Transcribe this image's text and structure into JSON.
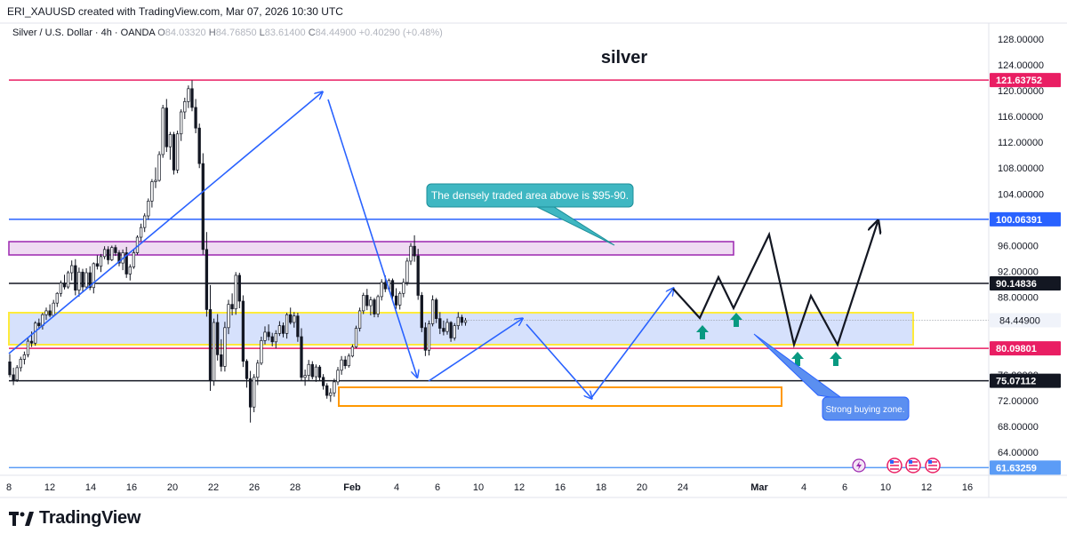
{
  "header": {
    "text": "ERI_XAUUSD created with TradingView.com, Mar 07, 2026 10:30 UTC"
  },
  "legend": {
    "symbol": "Silver / U.S. Dollar · 4h · OANDA",
    "o_label": "O",
    "o": "84.03320",
    "h_label": "H",
    "h": "84.76850",
    "l_label": "L",
    "l": "83.61400",
    "c_label": "C",
    "c": "84.44900",
    "change": "+0.40290 (+0.48%)"
  },
  "branding": {
    "name": "TradingView"
  },
  "colors": {
    "up": "#ffffff",
    "down": "#131722",
    "pink": "#e91e63",
    "blue": "#2962ff",
    "purple": "#9c27b0",
    "yellow": "#ffeb3b",
    "orange": "#ff9800",
    "green": "#089981",
    "teal": "#26a69a"
  },
  "chart_data": {
    "type": "candlestick",
    "title": "silver",
    "ylim": [
      60,
      132
    ],
    "y_ticks": [
      "128.00000",
      "124.00000",
      "120.00000",
      "116.00000",
      "112.00000",
      "108.00000",
      "104.00000",
      "96.00000",
      "92.00000",
      "88.00000",
      "76.00000",
      "72.00000",
      "68.00000",
      "64.00000"
    ],
    "x_ticks": [
      "8",
      "12",
      "14",
      "16",
      "20",
      "22",
      "26",
      "28",
      "Feb",
      "4",
      "6",
      "10",
      "12",
      "16",
      "18",
      "20",
      "24",
      "Mar",
      "4",
      "6",
      "10",
      "12",
      "16"
    ],
    "price_lines": [
      {
        "label": "121.63752",
        "value": 121.63752,
        "color": "#e91e63"
      },
      {
        "label": "100.06391",
        "value": 100.06391,
        "color": "#2962ff"
      },
      {
        "label": "90.14836",
        "value": 90.14836,
        "color": "#131722"
      },
      {
        "label": "80.09801",
        "value": 80.09801,
        "color": "#e91e63"
      },
      {
        "label": "75.07112",
        "value": 75.07112,
        "color": "#131722"
      },
      {
        "label": "61.63259",
        "value": 61.63259,
        "color": "#5b9cf6"
      }
    ],
    "last_price": "84.44900",
    "zones": [
      {
        "name": "purple-zone",
        "y_low": 94.5,
        "y_high": 96.5
      },
      {
        "name": "yellow-zone",
        "y_low": 81.0,
        "y_high": 85.8
      },
      {
        "name": "orange-zone",
        "y_low": 71.3,
        "y_high": 74.1
      }
    ],
    "annotations": [
      "The densely traded area above is $95-90.",
      "Strong buying zone."
    ],
    "ohlc": [
      [
        78.0,
        79.2,
        75.6,
        76.0
      ],
      [
        76.0,
        77.1,
        74.4,
        75.2
      ],
      [
        75.2,
        77.5,
        74.9,
        77.1
      ],
      [
        77.1,
        78.8,
        76.5,
        78.4
      ],
      [
        78.4,
        79.6,
        77.6,
        79.1
      ],
      [
        79.1,
        81.6,
        78.7,
        81.2
      ],
      [
        81.2,
        82.7,
        80.3,
        80.9
      ],
      [
        80.9,
        84.3,
        80.5,
        84.0
      ],
      [
        84.0,
        84.7,
        83.0,
        83.6
      ],
      [
        83.6,
        85.6,
        83.0,
        85.3
      ],
      [
        85.3,
        86.4,
        84.5,
        85.9
      ],
      [
        85.9,
        86.9,
        84.9,
        85.2
      ],
      [
        85.2,
        87.6,
        85.0,
        87.1
      ],
      [
        87.1,
        88.8,
        86.5,
        88.6
      ],
      [
        88.6,
        90.6,
        88.1,
        90.2
      ],
      [
        90.2,
        91.5,
        89.2,
        89.6
      ],
      [
        89.6,
        92.1,
        89.3,
        91.8
      ],
      [
        91.8,
        93.7,
        90.6,
        92.9
      ],
      [
        92.9,
        93.9,
        88.3,
        89.1
      ],
      [
        89.1,
        92.6,
        88.1,
        91.9
      ],
      [
        91.9,
        92.4,
        88.7,
        89.6
      ],
      [
        89.6,
        92.5,
        89.2,
        91.8
      ],
      [
        91.8,
        92.8,
        89.1,
        89.5
      ],
      [
        89.5,
        93.4,
        88.6,
        93.2
      ],
      [
        93.2,
        94.5,
        92.3,
        92.8
      ],
      [
        92.8,
        94.7,
        91.9,
        94.3
      ],
      [
        94.3,
        95.9,
        93.9,
        95.4
      ],
      [
        95.4,
        95.9,
        93.1,
        93.8
      ],
      [
        93.8,
        96.0,
        93.6,
        95.7
      ],
      [
        95.7,
        96.1,
        94.4,
        94.9
      ],
      [
        94.9,
        95.3,
        92.8,
        93.3
      ],
      [
        93.3,
        95.4,
        92.2,
        94.9
      ],
      [
        94.9,
        95.8,
        91.0,
        91.6
      ],
      [
        91.6,
        93.1,
        90.6,
        92.7
      ],
      [
        92.7,
        95.4,
        92.4,
        94.9
      ],
      [
        94.9,
        97.6,
        94.6,
        97.3
      ],
      [
        97.3,
        99.4,
        96.7,
        98.8
      ],
      [
        98.8,
        101.0,
        98.1,
        100.6
      ],
      [
        100.6,
        103.3,
        100.0,
        102.9
      ],
      [
        102.9,
        106.3,
        101.9,
        105.9
      ],
      [
        105.9,
        108.1,
        104.9,
        106.1
      ],
      [
        106.1,
        110.6,
        105.9,
        110.1
      ],
      [
        110.1,
        117.8,
        109.6,
        117.3
      ],
      [
        117.3,
        118.7,
        110.5,
        111.3
      ],
      [
        111.3,
        113.6,
        109.3,
        113.2
      ],
      [
        113.2,
        113.6,
        107.0,
        107.7
      ],
      [
        107.7,
        113.8,
        107.2,
        113.3
      ],
      [
        113.3,
        117.1,
        112.2,
        116.7
      ],
      [
        116.7,
        118.9,
        115.6,
        118.3
      ],
      [
        118.3,
        120.8,
        117.3,
        120.3
      ],
      [
        120.3,
        121.6,
        116.8,
        117.4
      ],
      [
        117.4,
        118.7,
        113.4,
        114.2
      ],
      [
        114.2,
        114.9,
        108.0,
        108.7
      ],
      [
        108.7,
        110.3,
        94.6,
        95.4
      ],
      [
        95.4,
        98.1,
        85.0,
        86.1
      ],
      [
        86.1,
        89.9,
        73.5,
        75.1
      ],
      [
        75.1,
        84.7,
        74.3,
        84.1
      ],
      [
        84.1,
        85.4,
        78.2,
        79.1
      ],
      [
        79.1,
        81.5,
        76.5,
        77.3
      ],
      [
        77.3,
        84.2,
        76.5,
        83.3
      ],
      [
        83.3,
        87.6,
        82.3,
        86.9
      ],
      [
        86.9,
        88.6,
        85.2,
        86.2
      ],
      [
        86.2,
        91.9,
        85.3,
        91.4
      ],
      [
        91.4,
        91.8,
        86.3,
        87.4
      ],
      [
        87.4,
        88.3,
        77.2,
        78.1
      ],
      [
        78.1,
        78.4,
        74.0,
        75.4
      ],
      [
        75.4,
        76.6,
        68.6,
        71.0
      ],
      [
        71.0,
        76.1,
        70.2,
        75.6
      ],
      [
        75.6,
        78.3,
        74.4,
        77.8
      ],
      [
        77.8,
        81.9,
        77.5,
        81.3
      ],
      [
        81.3,
        83.5,
        80.7,
        82.6
      ],
      [
        82.6,
        83.8,
        81.3,
        81.9
      ],
      [
        81.9,
        82.5,
        80.4,
        81.1
      ],
      [
        81.1,
        82.9,
        80.1,
        82.4
      ],
      [
        82.4,
        84.3,
        82.0,
        83.6
      ],
      [
        83.6,
        84.1,
        81.8,
        82.4
      ],
      [
        82.4,
        85.6,
        81.6,
        85.3
      ],
      [
        85.3,
        86.4,
        83.8,
        84.1
      ],
      [
        84.1,
        85.7,
        83.3,
        85.1
      ],
      [
        85.1,
        85.6,
        81.1,
        81.9
      ],
      [
        81.9,
        83.2,
        75.0,
        75.6
      ],
      [
        75.6,
        76.8,
        74.3,
        75.9
      ],
      [
        75.9,
        78.3,
        75.1,
        77.6
      ],
      [
        77.6,
        78.1,
        75.3,
        75.7
      ],
      [
        75.7,
        77.6,
        74.9,
        77.2
      ],
      [
        77.2,
        77.5,
        75.1,
        75.6
      ],
      [
        75.6,
        76.1,
        73.7,
        74.3
      ],
      [
        74.3,
        74.7,
        72.3,
        72.8
      ],
      [
        72.8,
        73.9,
        71.8,
        73.2
      ],
      [
        73.2,
        75.4,
        72.6,
        74.9
      ],
      [
        74.9,
        77.2,
        74.4,
        76.7
      ],
      [
        76.7,
        78.9,
        76.0,
        78.3
      ],
      [
        78.3,
        78.9,
        76.9,
        77.4
      ],
      [
        77.4,
        79.3,
        77.1,
        78.9
      ],
      [
        78.9,
        80.7,
        78.7,
        80.3
      ],
      [
        80.3,
        83.6,
        80.1,
        83.2
      ],
      [
        83.2,
        86.4,
        82.7,
        85.9
      ],
      [
        85.9,
        88.7,
        85.4,
        88.3
      ],
      [
        88.3,
        89.3,
        86.0,
        86.7
      ],
      [
        86.7,
        88.1,
        85.2,
        87.6
      ],
      [
        87.6,
        87.9,
        84.9,
        85.4
      ],
      [
        85.4,
        88.4,
        84.9,
        88.1
      ],
      [
        88.1,
        90.8,
        87.5,
        90.3
      ],
      [
        90.3,
        91.4,
        88.8,
        89.3
      ],
      [
        89.3,
        90.9,
        89.0,
        90.6
      ],
      [
        90.6,
        90.9,
        87.7,
        88.2
      ],
      [
        88.2,
        89.4,
        86.2,
        86.8
      ],
      [
        86.8,
        88.9,
        86.1,
        88.6
      ],
      [
        88.6,
        90.9,
        88.0,
        90.3
      ],
      [
        90.3,
        94.1,
        89.8,
        93.6
      ],
      [
        93.6,
        96.4,
        93.0,
        95.9
      ],
      [
        95.9,
        97.6,
        93.5,
        94.4
      ],
      [
        94.4,
        95.5,
        87.6,
        88.3
      ],
      [
        88.3,
        88.8,
        82.6,
        83.3
      ],
      [
        83.3,
        84.1,
        78.9,
        79.8
      ],
      [
        79.8,
        84.4,
        79.0,
        83.9
      ],
      [
        83.9,
        88.3,
        83.5,
        87.6
      ],
      [
        87.6,
        87.9,
        84.0,
        84.7
      ],
      [
        84.7,
        85.7,
        82.3,
        83.2
      ],
      [
        83.2,
        84.4,
        82.1,
        82.7
      ],
      [
        82.7,
        84.7,
        82.2,
        84.1
      ],
      [
        84.1,
        84.3,
        81.1,
        81.7
      ],
      [
        81.7,
        84.0,
        81.3,
        83.6
      ],
      [
        83.6,
        85.7,
        83.0,
        84.9
      ],
      [
        84.9,
        85.3,
        83.6,
        84.1
      ],
      [
        84.1,
        84.8,
        83.6,
        84.4
      ]
    ]
  }
}
